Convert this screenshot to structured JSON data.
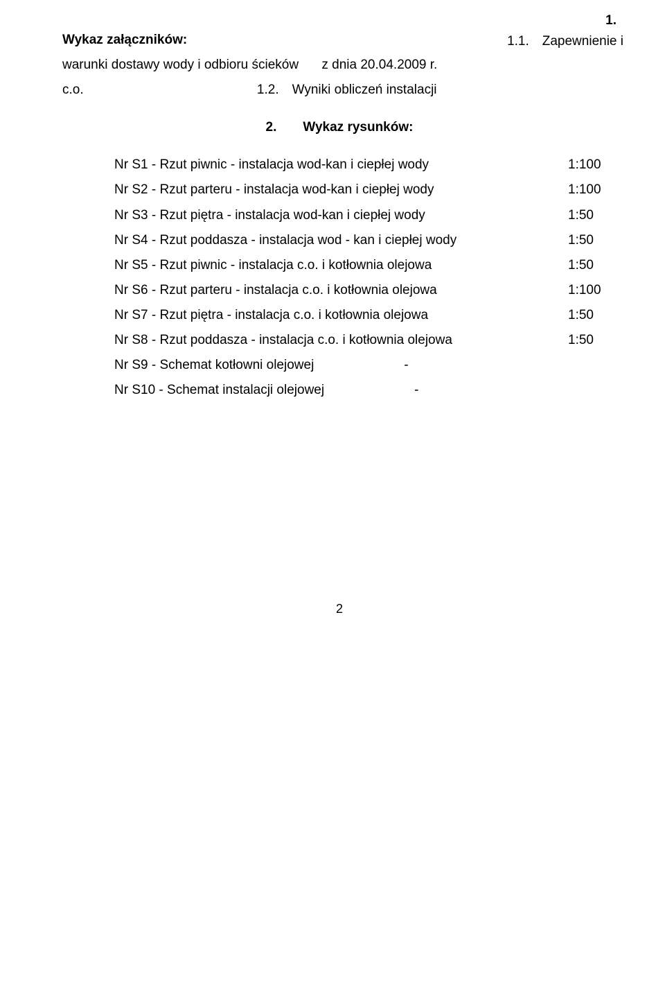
{
  "header": {
    "title": "Wykaz załączników:",
    "subtitle": "warunki dostawy wody i odbioru ścieków",
    "co": "c.o.",
    "num1": "1.",
    "zap": "1.1. Zapewnienie i",
    "date": "z dnia 20.04.2009 r.",
    "wyniki": "1.2. Wyniki obliczeń instalacji"
  },
  "section2_title": "2.  Wykaz rysunków:",
  "rows": [
    {
      "label": "Nr S1 - Rzut piwnic - instalacja wod-kan i ciepłej wody",
      "scale": "1:100"
    },
    {
      "label": "Nr S2 - Rzut parteru - instalacja wod-kan i ciepłej wody",
      "scale": "1:100"
    },
    {
      "label": "Nr S3 - Rzut piętra -  instalacja wod-kan i ciepłej wody",
      "scale": "1:50"
    },
    {
      "label": "Nr S4 - Rzut poddasza - instalacja wod - kan i ciepłej wody",
      "scale": "1:50"
    },
    {
      "label": "Nr S5 - Rzut piwnic - instalacja c.o. i kotłownia olejowa",
      "scale": "1:50"
    },
    {
      "label": "Nr S6 - Rzut parteru - instalacja c.o. i kotłownia olejowa",
      "scale": "1:100"
    },
    {
      "label": "Nr S7 - Rzut piętra - instalacja c.o. i kotłownia olejowa",
      "scale": "1:50"
    },
    {
      "label": "Nr S8 - Rzut poddasza - instalacja c.o. i kotłownia olejowa",
      "scale": "1:50"
    },
    {
      "label": "Nr S9 - Schemat  kotłowni olejowej",
      "dash": "-"
    },
    {
      "label": "Nr S10 - Schemat instalacji olejowej",
      "dash": "-"
    }
  ],
  "page_number": "2"
}
